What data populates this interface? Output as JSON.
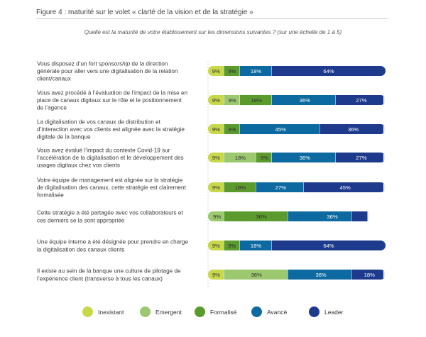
{
  "figure_title": "Figure 4 : maturité sur le volet « clarté de la vision et de la stratégie »",
  "chart_data": {
    "type": "bar",
    "orientation": "horizontal",
    "stacked": true,
    "subtitle": "Quelle est la maturité de votre établissement sur les dimensions suivantes ? (sur une échelle de 1 à 5)",
    "categories": [
      [
        "Vous disposez d’un fort ",
        {
          "i": "sponsorship"
        },
        " de la direction",
        "\n",
        "générale pour aller vers une digitalisation de la relation",
        "\n",
        "client/canaux"
      ],
      [
        "Vous avez procédé à l’évaluation de l’impact de la mise en",
        "\n",
        "place de canaux digitaux sur le rôle et le positionnement",
        "\n",
        "de l’agence"
      ],
      [
        "La digitalisation de vos canaux de distribution et",
        "\n",
        "d’interaction avec vos clients est alignée avec la stratégie",
        "\n",
        "digitale de la banque"
      ],
      [
        "Vous avez évalué l’impact du contexte Covid-19 sur",
        "\n",
        "l’accélération de la digitalisation et le développement des",
        "\n",
        "usages digitaux chez vos clients"
      ],
      [
        "Votre équipe de management est alignée sur la stratégie",
        "\n",
        "de digitalisation des canaux, cette stratégie est clairement",
        "\n",
        "formalisée"
      ],
      [
        "Cette stratégie a été partagée avec vos collaborateurs et",
        "\n",
        "ces derniers se la sont appropriée"
      ],
      [
        "Une équipe interne a été désignée pour prendre en charge",
        "\n",
        "la digitalisation des canaux clients"
      ],
      [
        "Il existe au sein de la banque une culture de pilotage de",
        "\n",
        "l’expérience client (transverse à tous les canaux)"
      ]
    ],
    "series": [
      {
        "name": "Inexistant",
        "color": "#c8d84a",
        "values": [
          9,
          9,
          9,
          9,
          9,
          0,
          9,
          9
        ]
      },
      {
        "name": "Emergent",
        "color": "#9cc870",
        "values": [
          0,
          9,
          0,
          18,
          0,
          9,
          0,
          36
        ]
      },
      {
        "name": "Formalisé",
        "color": "#5b9a2c",
        "values": [
          9,
          18,
          9,
          9,
          18,
          36,
          9,
          0
        ]
      },
      {
        "name": "Avancé",
        "color": "#0d6aa0",
        "values": [
          18,
          36,
          45,
          36,
          27,
          36,
          18,
          36
        ]
      },
      {
        "name": "Leader",
        "color": "#1e3a8c",
        "values": [
          64,
          27,
          36,
          27,
          45,
          9,
          64,
          18
        ]
      }
    ],
    "labels": [
      [
        "9%",
        "",
        "9%",
        "18%",
        "64%"
      ],
      [
        "9%",
        "9%",
        "18%",
        "36%",
        "27%"
      ],
      [
        "9%",
        "",
        "9%",
        "45%",
        "36%"
      ],
      [
        "9%",
        "18%",
        "9%",
        "36%",
        "27%"
      ],
      [
        "9%",
        "",
        "18%",
        "27%",
        "45%"
      ],
      [
        "",
        "9%",
        "36%",
        "36%",
        "9%"
      ],
      [
        "9%",
        "",
        "9%",
        "18%",
        "64%"
      ],
      [
        "9%",
        "36%",
        "",
        "36%",
        "18%"
      ]
    ],
    "xlim": [
      0,
      100
    ],
    "grid": false,
    "legend_position": "bottom"
  }
}
